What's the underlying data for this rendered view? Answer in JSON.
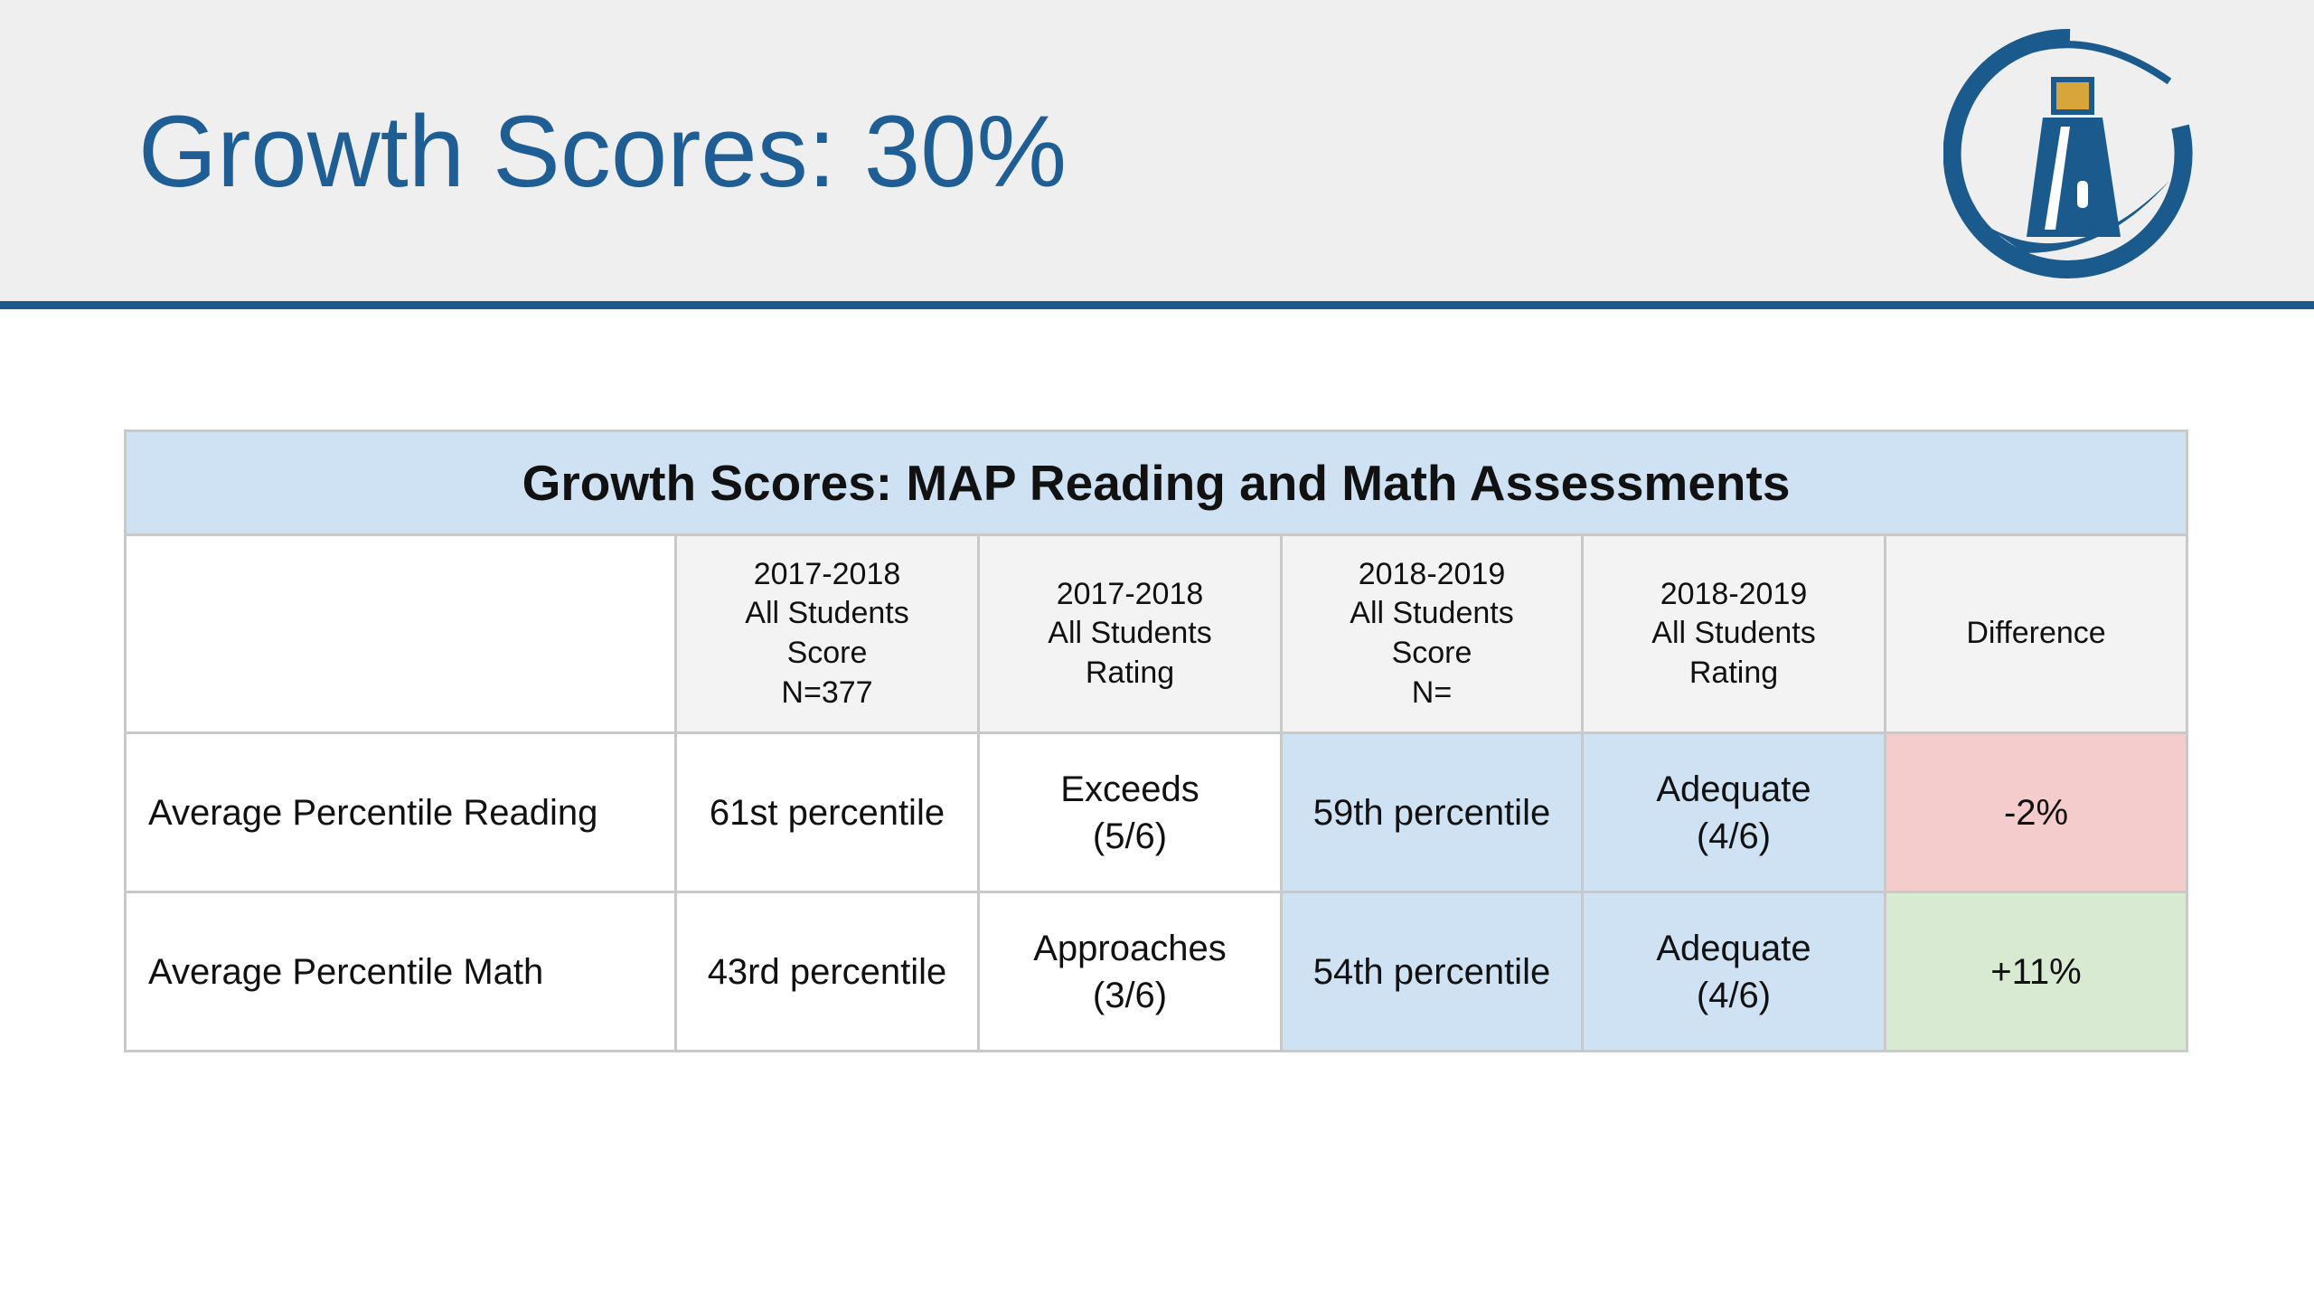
{
  "header": {
    "title": "Growth Scores: 30%"
  },
  "table": {
    "title": "Growth Scores: MAP Reading and Math Assessments",
    "columns": [
      [],
      [
        "2017-2018",
        "All Students",
        "Score",
        "N=377"
      ],
      [
        "2017-2018",
        "All Students",
        "Rating"
      ],
      [
        "2018-2019",
        "All Students",
        "Score",
        "N="
      ],
      [
        "2018-2019",
        "All Students",
        "Rating"
      ],
      [
        "Difference"
      ]
    ],
    "rows": [
      [
        [
          "Average Percentile Reading"
        ],
        [
          "61st percentile"
        ],
        [
          "Exceeds",
          "(5/6)"
        ],
        [
          "59th percentile"
        ],
        [
          "Adequate",
          "(4/6)"
        ],
        [
          "-2%"
        ]
      ],
      [
        [
          "Average Percentile Math"
        ],
        [
          "43rd percentile"
        ],
        [
          "Approaches",
          "(3/6)"
        ],
        [
          "54th percentile"
        ],
        [
          "Adequate",
          "(4/6)"
        ],
        [
          "+11%"
        ]
      ]
    ]
  }
}
